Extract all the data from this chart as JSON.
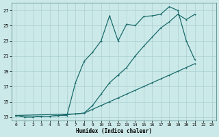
{
  "xlabel": "Humidex (Indice chaleur)",
  "xlim": [
    -0.5,
    23.5
  ],
  "ylim": [
    12.5,
    28.0
  ],
  "yticks": [
    13,
    15,
    17,
    19,
    21,
    23,
    25,
    27
  ],
  "xticks": [
    0,
    1,
    2,
    3,
    4,
    5,
    6,
    7,
    8,
    9,
    10,
    11,
    12,
    13,
    14,
    15,
    16,
    17,
    18,
    19,
    20,
    21,
    22,
    23
  ],
  "bg_color": "#cce9e9",
  "grid_color": "#b0d4d4",
  "line_color": "#1a6b6b",
  "line_color2": "#1a7070",
  "line1_x": [
    0,
    1,
    2,
    3,
    4,
    5,
    6,
    7,
    8,
    9,
    10,
    11,
    12,
    13,
    14,
    15,
    16,
    17,
    18,
    19,
    20,
    21
  ],
  "line1_y": [
    13.2,
    13.0,
    13.0,
    13.1,
    13.1,
    13.2,
    13.3,
    13.4,
    13.5,
    14.0,
    14.5,
    15.0,
    15.5,
    16.0,
    16.5,
    17.0,
    17.5,
    18.0,
    18.5,
    19.0,
    19.5,
    20.0
  ],
  "line2_x": [
    0,
    1,
    2,
    3,
    4,
    5,
    6,
    7,
    8,
    9,
    10,
    11,
    12,
    13,
    14,
    15,
    16,
    17,
    18,
    19,
    20,
    21
  ],
  "line2_y": [
    13.2,
    13.0,
    13.0,
    13.1,
    13.1,
    13.2,
    13.2,
    17.5,
    20.3,
    21.5,
    23.0,
    26.3,
    23.0,
    25.2,
    25.0,
    26.2,
    26.3,
    26.5,
    27.5,
    27.0,
    23.0,
    20.5
  ],
  "line3_x": [
    0,
    7,
    8,
    9,
    10,
    11,
    12,
    13,
    14,
    15,
    16,
    17,
    18,
    19,
    20,
    21
  ],
  "line3_y": [
    13.2,
    13.4,
    13.5,
    14.5,
    16.0,
    17.5,
    18.5,
    19.5,
    21.0,
    22.3,
    23.5,
    24.7,
    25.5,
    26.5,
    25.8,
    26.5
  ],
  "markersize": 2.0,
  "linewidth": 0.9
}
